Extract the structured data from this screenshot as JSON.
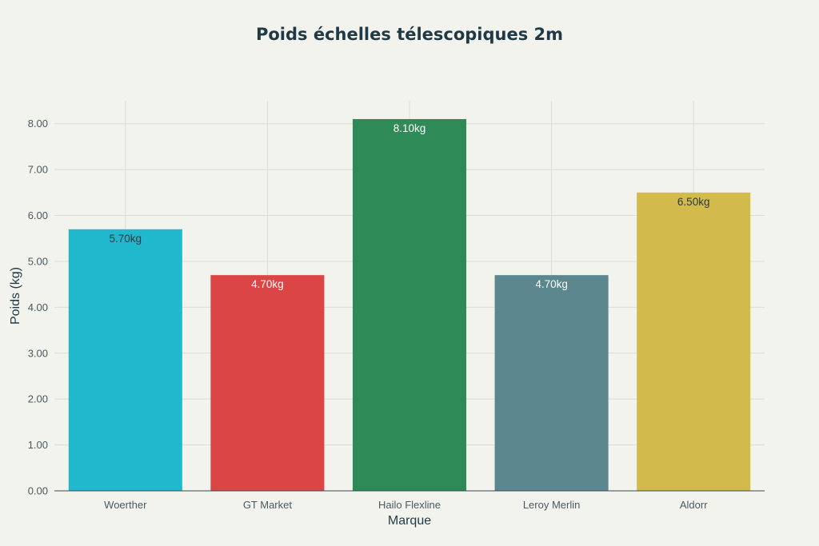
{
  "chart_data": {
    "type": "bar",
    "title": "Poids échelles télescopiques 2m",
    "xlabel": "Marque",
    "ylabel": "Poids (kg)",
    "categories": [
      "Woerther",
      "GT Market",
      "Hailo Flexline",
      "Leroy Merlin",
      "Aldorr"
    ],
    "values": [
      5.7,
      4.7,
      8.1,
      4.7,
      6.5
    ],
    "data_labels": [
      "5.70kg",
      "4.70kg",
      "8.10kg",
      "4.70kg",
      "6.50kg"
    ],
    "colors": [
      "#1fb8cd",
      "#db4545",
      "#2e8b57",
      "#5d878f",
      "#d2ba4c"
    ],
    "label_colors": [
      "#2b3a3f",
      "#ffffff",
      "#ffffff",
      "#ffffff",
      "#2b3a3f"
    ],
    "ylim": [
      0,
      8.5
    ],
    "yticks": [
      0,
      1,
      2,
      3,
      4,
      5,
      6,
      7,
      8
    ],
    "ytick_labels": [
      "0.00",
      "1.00",
      "2.00",
      "3.00",
      "4.00",
      "5.00",
      "6.00",
      "7.00",
      "8.00"
    ],
    "grid": true,
    "legend": "none"
  }
}
